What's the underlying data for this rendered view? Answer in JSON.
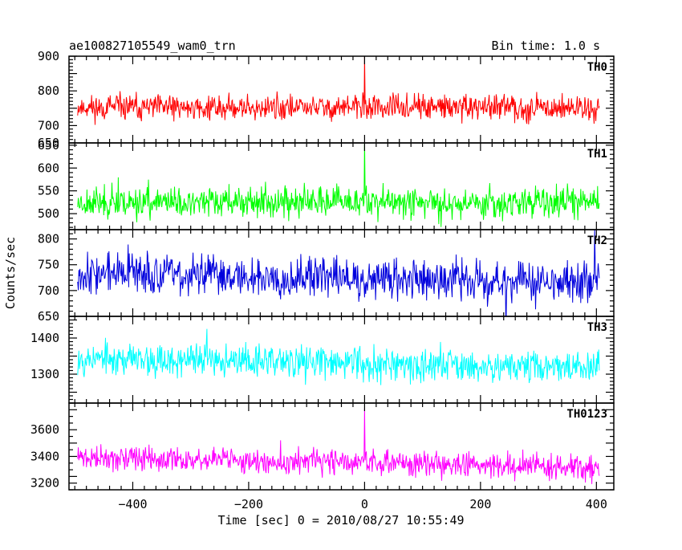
{
  "header": {
    "left": "ae100827105549_wam0_trn",
    "right": "Bin time: 1.0 s"
  },
  "chart_data": {
    "type": "line",
    "title": "ae100827105549_wam0_trn",
    "xlabel": "Time [sec] 0 = 2010/08/27 10:55:49",
    "ylabel": "Counts/sec",
    "bin_time_s": 1.0,
    "xlim": [
      -510,
      430
    ],
    "x_ticks": [
      -400,
      -200,
      0,
      200,
      400
    ],
    "x_tick_labels": [
      "−400",
      "−200",
      "0",
      "200",
      "400"
    ],
    "grid": false,
    "series": [
      {
        "name": "TH0",
        "color": "#ff0000",
        "ylim": [
          650,
          900
        ],
        "y_ticks": [
          650,
          700,
          750,
          800,
          900
        ],
        "y_tick_labels": [
          "650",
          "700",
          "800",
          "900"
        ],
        "labeled_ticks": [
          700,
          800,
          900
        ],
        "x_range": [
          -495,
          405
        ],
        "mean": 752,
        "noise": 28,
        "trend": 0,
        "seed": 11,
        "spikes": [
          {
            "x": 0,
            "y": 900
          }
        ]
      },
      {
        "name": "TH1",
        "color": "#00ff00",
        "ylim": [
          465,
          655
        ],
        "y_ticks": [
          500,
          550,
          600,
          650
        ],
        "y_tick_labels": [
          "500",
          "550",
          "600",
          "650"
        ],
        "x_range": [
          -495,
          405
        ],
        "mean": 525,
        "noise": 25,
        "trend": 0,
        "seed": 23,
        "spikes": [
          {
            "x": 0,
            "y": 660
          }
        ]
      },
      {
        "name": "TH2",
        "color": "#0000dd",
        "ylim": [
          650,
          818
        ],
        "y_ticks": [
          650,
          700,
          750,
          800
        ],
        "y_tick_labels": [
          "650",
          "700",
          "750",
          "800"
        ],
        "x_range": [
          -495,
          405
        ],
        "mean": 735,
        "noise": 30,
        "trend": -20,
        "seed": 37,
        "spikes": []
      },
      {
        "name": "TH3",
        "color": "#00ffff",
        "ylim": [
          1220,
          1460
        ],
        "y_ticks": [
          1300,
          1400
        ],
        "y_tick_labels": [
          "1300",
          "1400"
        ],
        "x_range": [
          -495,
          405
        ],
        "mean": 1345,
        "noise": 35,
        "trend": -25,
        "seed": 53,
        "spikes": []
      },
      {
        "name": "TH0123",
        "color": "#ff00ff",
        "ylim": [
          3150,
          3800
        ],
        "y_ticks": [
          3200,
          3400,
          3600
        ],
        "y_tick_labels": [
          "3200",
          "3400",
          "3600"
        ],
        "x_range": [
          -495,
          405
        ],
        "mean": 3390,
        "noise": 70,
        "trend": -70,
        "seed": 71,
        "spikes": [
          {
            "x": 0,
            "y": 3760
          }
        ]
      }
    ]
  }
}
